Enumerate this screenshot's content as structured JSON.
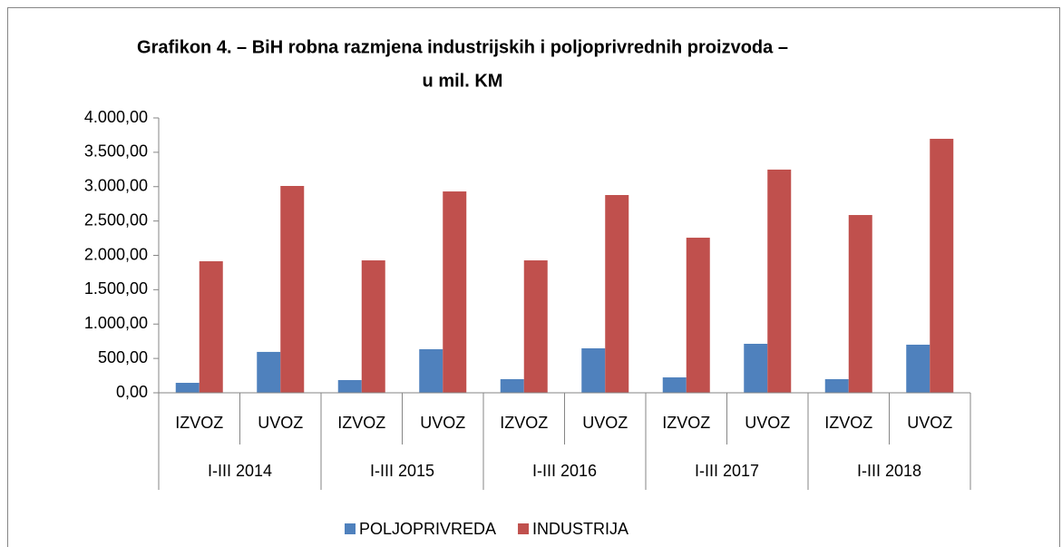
{
  "chart_data": {
    "type": "bar",
    "title": [
      "Grafikon 4. – BiH robna razmjena industrijskih i poljoprivrednih proizvoda –",
      "u mil. KM"
    ],
    "categories": [
      "IZVOZ",
      "UVOZ",
      "IZVOZ",
      "UVOZ",
      "IZVOZ",
      "UVOZ",
      "IZVOZ",
      "UVOZ",
      "IZVOZ",
      "UVOZ"
    ],
    "groups": [
      "I-III 2014",
      "I-III 2015",
      "I-III 2016",
      "I-III 2017",
      "I-III 2018"
    ],
    "series": [
      {
        "name": "POLJOPRIVREDA",
        "color": "#4f81bd",
        "values": [
          145,
          595,
          185,
          634,
          198,
          647,
          224,
          713,
          198,
          700
        ]
      },
      {
        "name": "INDUSTRIJA",
        "color": "#c0504d",
        "values": [
          1914,
          3010,
          1927,
          2930,
          1927,
          2878,
          2257,
          3248,
          2587,
          3696
        ]
      }
    ],
    "ylim": [
      0,
      4000
    ],
    "yticks": [
      {
        "value": 0,
        "label": "0,00"
      },
      {
        "value": 500,
        "label": "500,00"
      },
      {
        "value": 1000,
        "label": "1.000,00"
      },
      {
        "value": 1500,
        "label": "1.500,00"
      },
      {
        "value": 2000,
        "label": "2.000,00"
      },
      {
        "value": 2500,
        "label": "2.500,00"
      },
      {
        "value": 3000,
        "label": "3.000,00"
      },
      {
        "value": 3500,
        "label": "3.500,00"
      },
      {
        "value": 4000,
        "label": "4.000,00"
      }
    ],
    "grid": false,
    "legend": "bottom"
  }
}
